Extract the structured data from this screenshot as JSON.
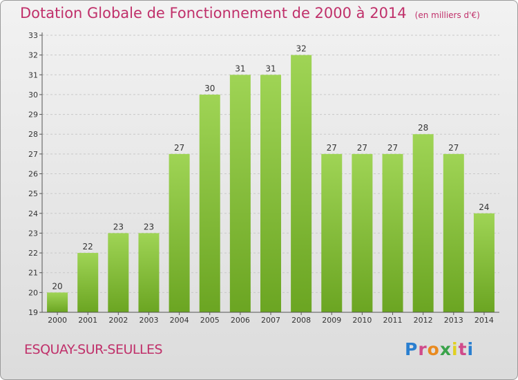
{
  "title": "Dotation Globale de Fonctionnement de 2000 à 2014",
  "unit_note": "(en milliers d'€)",
  "commune": "ESQUAY-SUR-SEULLES",
  "logo": {
    "text": "Proxiti",
    "letters": [
      "P",
      "r",
      "o",
      "x",
      "i",
      "t",
      "i"
    ],
    "colors": [
      "#2a7fd0",
      "#d04a8a",
      "#e98a1f",
      "#3aa34a",
      "#e0d020",
      "#d04a8a",
      "#2a7fd0"
    ]
  },
  "colors": {
    "title": "#c0306a",
    "bar_light": "#9fd455",
    "bar_dark": "#6ba522",
    "grid": "#c8c8c8",
    "axis": "#555555"
  },
  "chart_data": {
    "type": "bar",
    "title": "Dotation Globale de Fonctionnement de 2000 à 2014",
    "subtitle": "(en milliers d'€)",
    "categories": [
      "2000",
      "2001",
      "2002",
      "2003",
      "2004",
      "2005",
      "2006",
      "2007",
      "2008",
      "2009",
      "2010",
      "2011",
      "2012",
      "2013",
      "2014"
    ],
    "values": [
      20,
      22,
      23,
      23,
      27,
      30,
      31,
      31,
      32,
      27,
      27,
      27,
      28,
      27,
      24
    ],
    "ylim": [
      19,
      33
    ],
    "yticks": [
      19,
      20,
      21,
      22,
      23,
      24,
      25,
      26,
      27,
      28,
      29,
      30,
      31,
      32,
      33
    ],
    "grid": true,
    "xlabel": "",
    "ylabel": ""
  }
}
